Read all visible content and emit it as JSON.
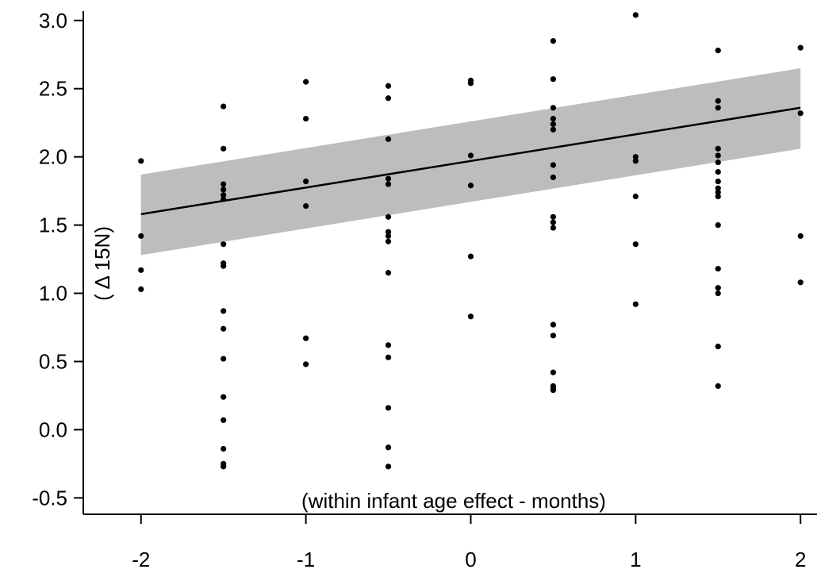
{
  "chart_data": {
    "type": "scatter",
    "title": "",
    "xlabel": "(within infant age effect - months)",
    "ylabel": "( Δ 15N)",
    "xlim": [
      -2.35,
      2.1
    ],
    "ylim": [
      -0.62,
      3.15
    ],
    "x_ticks": [
      -2,
      -1,
      0,
      1,
      2
    ],
    "x_tick_labels": [
      "-2",
      "-1",
      "0",
      "1",
      "2"
    ],
    "y_ticks": [
      -0.5,
      0.0,
      0.5,
      1.0,
      1.5,
      2.0,
      2.5,
      3.0
    ],
    "y_tick_labels": [
      "-0.5",
      "0.0",
      "0.5",
      "1.0",
      "1.5",
      "2.0",
      "2.5",
      "3.0"
    ],
    "grid": false,
    "colors": {
      "points": "#000000",
      "fit_line": "#000000",
      "ci_band": "#bdbdbd"
    },
    "fit_line": {
      "x": [
        -2,
        2
      ],
      "y": [
        1.58,
        2.36
      ]
    },
    "confidence_band": {
      "x": [
        -2,
        2
      ],
      "lower": [
        1.28,
        2.06
      ],
      "upper": [
        1.87,
        2.65
      ]
    },
    "points": [
      {
        "x": -2,
        "y": 1.97
      },
      {
        "x": -2,
        "y": 1.42
      },
      {
        "x": -2,
        "y": 1.17
      },
      {
        "x": -2,
        "y": 1.03
      },
      {
        "x": -1.5,
        "y": 2.37
      },
      {
        "x": -1.5,
        "y": 2.06
      },
      {
        "x": -1.5,
        "y": 1.8
      },
      {
        "x": -1.5,
        "y": 1.76
      },
      {
        "x": -1.5,
        "y": 1.72
      },
      {
        "x": -1.5,
        "y": 1.69
      },
      {
        "x": -1.5,
        "y": 1.36
      },
      {
        "x": -1.5,
        "y": 1.22
      },
      {
        "x": -1.5,
        "y": 1.2
      },
      {
        "x": -1.5,
        "y": 0.87
      },
      {
        "x": -1.5,
        "y": 0.74
      },
      {
        "x": -1.5,
        "y": 0.52
      },
      {
        "x": -1.5,
        "y": 0.24
      },
      {
        "x": -1.5,
        "y": 0.07
      },
      {
        "x": -1.5,
        "y": -0.14
      },
      {
        "x": -1.5,
        "y": -0.25
      },
      {
        "x": -1.5,
        "y": -0.27
      },
      {
        "x": -1,
        "y": 2.55
      },
      {
        "x": -1,
        "y": 2.28
      },
      {
        "x": -1,
        "y": 1.82
      },
      {
        "x": -1,
        "y": 1.64
      },
      {
        "x": -1,
        "y": 0.67
      },
      {
        "x": -1,
        "y": 0.48
      },
      {
        "x": -0.5,
        "y": 2.52
      },
      {
        "x": -0.5,
        "y": 2.43
      },
      {
        "x": -0.5,
        "y": 2.13
      },
      {
        "x": -0.5,
        "y": 1.84
      },
      {
        "x": -0.5,
        "y": 1.8
      },
      {
        "x": -0.5,
        "y": 1.56
      },
      {
        "x": -0.5,
        "y": 1.45
      },
      {
        "x": -0.5,
        "y": 1.42
      },
      {
        "x": -0.5,
        "y": 1.38
      },
      {
        "x": -0.5,
        "y": 1.15
      },
      {
        "x": -0.5,
        "y": 0.62
      },
      {
        "x": -0.5,
        "y": 0.53
      },
      {
        "x": -0.5,
        "y": 0.16
      },
      {
        "x": -0.5,
        "y": -0.13
      },
      {
        "x": -0.5,
        "y": -0.27
      },
      {
        "x": 0,
        "y": 2.56
      },
      {
        "x": 0,
        "y": 2.54
      },
      {
        "x": 0,
        "y": 2.01
      },
      {
        "x": 0,
        "y": 1.79
      },
      {
        "x": 0,
        "y": 1.27
      },
      {
        "x": 0,
        "y": 0.83
      },
      {
        "x": 0.5,
        "y": 2.85
      },
      {
        "x": 0.5,
        "y": 2.57
      },
      {
        "x": 0.5,
        "y": 2.36
      },
      {
        "x": 0.5,
        "y": 2.28
      },
      {
        "x": 0.5,
        "y": 2.24
      },
      {
        "x": 0.5,
        "y": 2.2
      },
      {
        "x": 0.5,
        "y": 1.94
      },
      {
        "x": 0.5,
        "y": 1.85
      },
      {
        "x": 0.5,
        "y": 1.56
      },
      {
        "x": 0.5,
        "y": 1.52
      },
      {
        "x": 0.5,
        "y": 1.48
      },
      {
        "x": 0.5,
        "y": 0.77
      },
      {
        "x": 0.5,
        "y": 0.69
      },
      {
        "x": 0.5,
        "y": 0.42
      },
      {
        "x": 0.5,
        "y": 0.32
      },
      {
        "x": 0.5,
        "y": 0.3
      },
      {
        "x": 0.5,
        "y": 0.29
      },
      {
        "x": 1,
        "y": 3.04
      },
      {
        "x": 1,
        "y": 2.0
      },
      {
        "x": 1,
        "y": 1.97
      },
      {
        "x": 1,
        "y": 1.71
      },
      {
        "x": 1,
        "y": 1.36
      },
      {
        "x": 1,
        "y": 0.92
      },
      {
        "x": 1.5,
        "y": 2.78
      },
      {
        "x": 1.5,
        "y": 2.41
      },
      {
        "x": 1.5,
        "y": 2.36
      },
      {
        "x": 1.5,
        "y": 2.06
      },
      {
        "x": 1.5,
        "y": 2.01
      },
      {
        "x": 1.5,
        "y": 1.96
      },
      {
        "x": 1.5,
        "y": 1.89
      },
      {
        "x": 1.5,
        "y": 1.82
      },
      {
        "x": 1.5,
        "y": 1.77
      },
      {
        "x": 1.5,
        "y": 1.74
      },
      {
        "x": 1.5,
        "y": 1.71
      },
      {
        "x": 1.5,
        "y": 1.5
      },
      {
        "x": 1.5,
        "y": 1.18
      },
      {
        "x": 1.5,
        "y": 1.04
      },
      {
        "x": 1.5,
        "y": 1.0
      },
      {
        "x": 1.5,
        "y": 0.61
      },
      {
        "x": 1.5,
        "y": 0.32
      },
      {
        "x": 2,
        "y": 2.8
      },
      {
        "x": 2,
        "y": 2.32
      },
      {
        "x": 2,
        "y": 1.42
      },
      {
        "x": 2,
        "y": 1.08
      }
    ]
  }
}
